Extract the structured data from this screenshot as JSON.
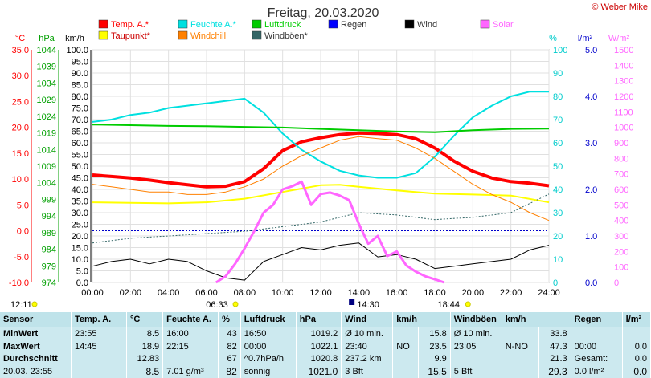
{
  "credit": "© Weber Mike",
  "chart_data": {
    "type": "line",
    "title": "Freitag, 20.03.2020",
    "x_ticks": [
      "00:00",
      "02:00",
      "04:00",
      "06:00",
      "08:00",
      "10:00",
      "12:00",
      "14:00",
      "16:00",
      "18:00",
      "20:00",
      "22:00",
      "24:00"
    ],
    "x_range_hours": [
      0,
      24
    ],
    "sunrise_label": "06:33",
    "sunset_label": "18:44",
    "noon_label": "14:30",
    "clock_label": "12:11",
    "axes": {
      "temp": {
        "unit": "°C",
        "range": [
          -10,
          35
        ],
        "ticks": [
          "35.0",
          "30.0",
          "25.0",
          "20.0",
          "15.0",
          "10.0",
          "5.0",
          "0.0",
          "-5.0",
          "-10.0"
        ],
        "color": "#ff0000"
      },
      "pressure": {
        "unit": "hPa",
        "range": [
          974,
          1044
        ],
        "ticks": [
          "1044",
          "1039",
          "1034",
          "1029",
          "1024",
          "1019",
          "1014",
          "1009",
          "1004",
          "999",
          "994",
          "989",
          "984",
          "979",
          "974"
        ],
        "color": "#00a000"
      },
      "wind": {
        "unit": "km/h",
        "range": [
          0,
          100
        ],
        "ticks": [
          "100.0",
          "95.0",
          "90.0",
          "85.0",
          "80.0",
          "75.0",
          "70.0",
          "65.0",
          "60.0",
          "55.0",
          "50.0",
          "45.0",
          "40.0",
          "35.0",
          "30.0",
          "25.0",
          "20.0",
          "15.0",
          "10.0",
          "5.0",
          "0.0"
        ],
        "color": "#000000"
      },
      "humidity": {
        "unit": "%",
        "range": [
          0,
          100
        ],
        "ticks": [
          "100",
          "90",
          "80",
          "70",
          "60",
          "50",
          "40",
          "30",
          "20",
          "10",
          "0"
        ],
        "color": "#00cccc"
      },
      "rain": {
        "unit": "l/m²",
        "range": [
          0,
          5
        ],
        "ticks": [
          "5.0",
          "4.0",
          "3.0",
          "2.0",
          "1.0",
          "0.0"
        ],
        "color": "#0000cc"
      },
      "solar": {
        "unit": "W/m²",
        "range": [
          0,
          1500
        ],
        "ticks": [
          "1500",
          "1400",
          "1300",
          "1200",
          "1100",
          "1000",
          "900",
          "800",
          "700",
          "600",
          "500",
          "400",
          "300",
          "200",
          "100",
          "0"
        ],
        "color": "#ff66ff"
      }
    },
    "legend": [
      {
        "name": "Temp. A.*",
        "color": "#ff0000"
      },
      {
        "name": "Feuchte A.*",
        "color": "#00e0e0"
      },
      {
        "name": "Luftdruck",
        "color": "#00cc00"
      },
      {
        "name": "Regen",
        "color": "#0000ff"
      },
      {
        "name": "Wind",
        "color": "#000000"
      },
      {
        "name": "Solar",
        "color": "#ff66ff"
      },
      {
        "name": "Taupunkt*",
        "color": "#ffff00"
      },
      {
        "name": "Windchill",
        "color": "#ff8000"
      },
      {
        "name": "Windböen*",
        "color": "#336666"
      }
    ],
    "series": [
      {
        "name": "Temp. A.*",
        "axis": "temp",
        "color": "#ff0000",
        "width": 4,
        "x": [
          0,
          1,
          2,
          3,
          4,
          5,
          6,
          7,
          8,
          9,
          10,
          11,
          12,
          13,
          14,
          15,
          16,
          17,
          18,
          19,
          20,
          21,
          22,
          23,
          24
        ],
        "y": [
          10.8,
          10.5,
          10.2,
          9.8,
          9.3,
          8.9,
          8.5,
          8.6,
          9.5,
          12.0,
          15.5,
          17.2,
          18.0,
          18.6,
          18.9,
          18.8,
          18.6,
          17.8,
          16.0,
          13.5,
          11.5,
          10.2,
          9.5,
          9.2,
          8.7
        ]
      },
      {
        "name": "Feuchte A.*",
        "axis": "humidity",
        "color": "#00e0e0",
        "width": 2,
        "x": [
          0,
          1,
          2,
          3,
          4,
          5,
          6,
          7,
          8,
          9,
          10,
          11,
          12,
          13,
          14,
          15,
          16,
          17,
          18,
          19,
          20,
          21,
          22,
          23,
          24
        ],
        "y": [
          69,
          70,
          72,
          73,
          75,
          76,
          77,
          78,
          79,
          73,
          64,
          57,
          52,
          48,
          46,
          45,
          45,
          47,
          54,
          63,
          71,
          76,
          80,
          82,
          82
        ]
      },
      {
        "name": "Luftdruck",
        "axis": "pressure",
        "color": "#00cc00",
        "width": 2,
        "x": [
          0,
          2,
          4,
          6,
          8,
          10,
          12,
          14,
          16,
          18,
          20,
          22,
          24
        ],
        "y": [
          1021.5,
          1021.3,
          1021.1,
          1021.0,
          1020.8,
          1020.6,
          1020.2,
          1019.8,
          1019.4,
          1019.2,
          1019.8,
          1020.2,
          1020.3
        ]
      },
      {
        "name": "Taupunkt*",
        "axis": "temp",
        "color": "#ffff00",
        "width": 2,
        "x": [
          0,
          2,
          4,
          6,
          8,
          10,
          12,
          13,
          14,
          16,
          18,
          20,
          22,
          24
        ],
        "y": [
          5.5,
          5.4,
          5.3,
          5.5,
          6.2,
          7.5,
          8.8,
          8.9,
          8.5,
          7.8,
          7.2,
          7.0,
          6.8,
          5.5
        ]
      },
      {
        "name": "Windchill",
        "axis": "temp",
        "color": "#ff8000",
        "width": 1,
        "x": [
          0,
          1,
          2,
          3,
          4,
          5,
          6,
          7,
          8,
          9,
          10,
          11,
          12,
          13,
          14,
          15,
          16,
          17,
          18,
          19,
          20,
          21,
          22,
          23,
          24
        ],
        "y": [
          9.0,
          8.5,
          8.0,
          7.5,
          7.5,
          7.0,
          7.0,
          7.5,
          8.5,
          10.0,
          12.5,
          14.5,
          16.0,
          17.5,
          18.2,
          17.8,
          17.5,
          16.0,
          14.0,
          11.5,
          9.0,
          7.0,
          5.5,
          3.5,
          2.0
        ]
      },
      {
        "name": "Windböen*",
        "axis": "wind",
        "color": "#336666",
        "width": 1,
        "dash": "2,2",
        "x": [
          0,
          2,
          4,
          6,
          8,
          10,
          12,
          14,
          16,
          18,
          20,
          22,
          24
        ],
        "y": [
          17,
          19,
          20,
          21,
          22,
          24,
          26,
          30,
          29,
          27,
          28,
          30,
          38
        ]
      },
      {
        "name": "Wind",
        "axis": "wind",
        "color": "#000000",
        "width": 1,
        "x": [
          0,
          1,
          2,
          3,
          4,
          5,
          6,
          7,
          8,
          9,
          10,
          11,
          12,
          13,
          14,
          15,
          16,
          17,
          18,
          19,
          20,
          21,
          22,
          23,
          24
        ],
        "y": [
          7,
          9,
          10,
          8,
          10,
          9,
          5,
          2,
          1,
          9,
          12,
          15,
          14,
          16,
          17,
          11,
          12,
          10,
          6,
          7,
          8,
          9,
          10,
          14,
          16
        ]
      },
      {
        "name": "Solar",
        "axis": "solar",
        "color": "#ff66ff",
        "width": 3,
        "x": [
          6.5,
          7,
          7.5,
          8,
          8.5,
          9,
          9.5,
          10,
          10.5,
          11,
          11.5,
          12,
          12.5,
          13,
          13.5,
          14,
          14.5,
          15,
          15.5,
          16,
          16.5,
          17,
          17.5,
          18,
          18.5
        ],
        "y": [
          0,
          40,
          120,
          220,
          330,
          450,
          500,
          600,
          620,
          650,
          500,
          570,
          580,
          560,
          530,
          380,
          250,
          300,
          170,
          200,
          110,
          70,
          40,
          20,
          0
        ]
      }
    ]
  },
  "stats": {
    "headers": {
      "sensor": "Sensor",
      "temp": "Temp. A.",
      "temp_unit": "°C",
      "hum": "Feuchte A.",
      "hum_unit": "%",
      "press": "Luftdruck",
      "press_unit": "hPa",
      "wind": "Wind",
      "wind_unit": "km/h",
      "gust": "Windböen",
      "gust_unit": "km/h",
      "rain": "Regen",
      "rain_unit": "l/m²"
    },
    "rows": [
      {
        "label": "MinWert",
        "temp_time": "23:55",
        "temp_val": "8.5",
        "hum_time": "16:00",
        "hum_val": "43",
        "press_time": "16:50",
        "press_val": "1019.2",
        "wind_label": "Ø 10 min.",
        "wind_val": "15.8",
        "gust_label": "Ø 10 min.",
        "gust_val": "33.8",
        "rain_label": "",
        "rain_val": ""
      },
      {
        "label": "MaxWert",
        "temp_time": "14:45",
        "temp_val": "18.9",
        "hum_time": "22:15",
        "hum_val": "82",
        "press_time": "00:00",
        "press_val": "1022.1",
        "wind_label": "23:40",
        "wind_mid": "NO",
        "wind_val": "23.5",
        "gust_label": "23:05",
        "gust_mid": "N-NO",
        "gust_val": "47.3",
        "rain_label": "00:00",
        "rain_val": "0.0"
      },
      {
        "label": "Durchschnitt",
        "temp_time": "",
        "temp_val": "12.83",
        "hum_time": "",
        "hum_val": "67",
        "press_time": "^0.7hPa/h",
        "press_val": "1020.8",
        "wind_label": "237.2 km",
        "wind_val": "9.9",
        "gust_label": "",
        "gust_val": "21.3",
        "rain_label": "Gesamt:",
        "rain_val": "0.0"
      },
      {
        "label": "20.03. 23:55",
        "temp_time": "",
        "temp_val": "8.5",
        "hum_time": "7.01 g/m³",
        "hum_val": "82",
        "press_time": "sonnig",
        "press_val": "1021.0",
        "wind_label": "3 Bft",
        "wind_val": "15.5",
        "gust_label": "5 Bft",
        "gust_val": "29.3",
        "rain_label": "0.0 l/m²",
        "rain_val": "0.0"
      }
    ]
  }
}
